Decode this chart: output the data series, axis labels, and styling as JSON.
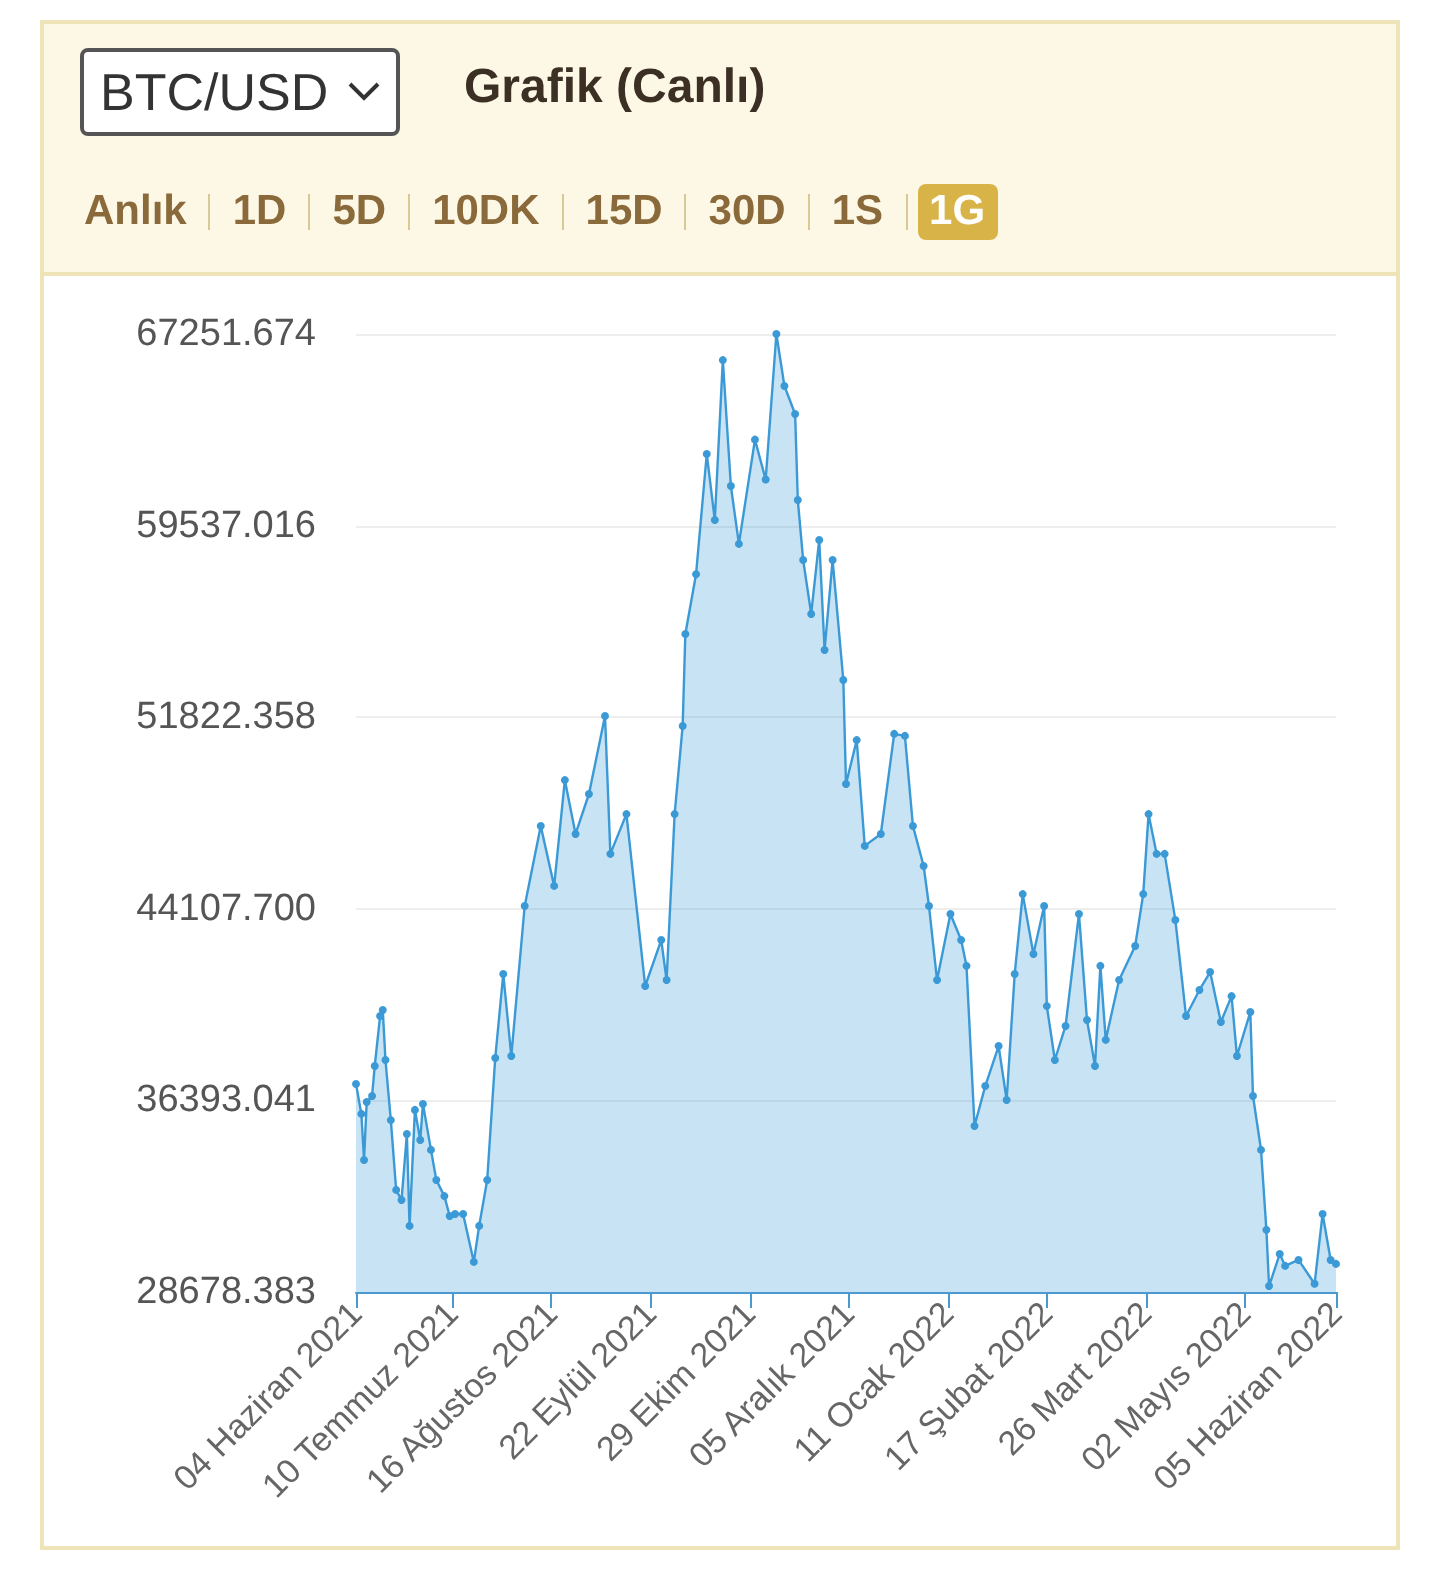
{
  "chart_data": {
    "type": "area",
    "title": "Grafik (Canlı)",
    "annotations": [
      "BTC/USD",
      "Anlık",
      "1D",
      "5D",
      "10DK",
      "15D",
      "30D",
      "1S",
      "1G"
    ],
    "x": [
      "2021-06-04",
      "2021-06-06",
      "2021-06-07",
      "2021-06-08",
      "2021-06-10",
      "2021-06-11",
      "2021-06-13",
      "2021-06-14",
      "2021-06-15",
      "2021-06-17",
      "2021-06-19",
      "2021-06-21",
      "2021-06-23",
      "2021-06-24",
      "2021-06-26",
      "2021-06-28",
      "2021-06-29",
      "2021-07-02",
      "2021-07-04",
      "2021-07-07",
      "2021-07-09",
      "2021-07-11",
      "2021-07-14",
      "2021-07-18",
      "2021-07-20",
      "2021-07-23",
      "2021-07-26",
      "2021-07-29",
      "2021-08-01",
      "2021-08-06",
      "2021-08-12",
      "2021-08-17",
      "2021-08-21",
      "2021-08-25",
      "2021-08-30",
      "2021-09-05",
      "2021-09-07",
      "2021-09-13",
      "2021-09-20",
      "2021-09-26",
      "2021-09-28",
      "2021-10-01",
      "2021-10-04",
      "2021-10-05",
      "2021-10-09",
      "2021-10-13",
      "2021-10-16",
      "2021-10-19",
      "2021-10-22",
      "2021-10-25",
      "2021-10-31",
      "2021-11-04",
      "2021-11-08",
      "2021-11-11",
      "2021-11-15",
      "2021-11-16",
      "2021-11-18",
      "2021-11-21",
      "2021-11-24",
      "2021-11-26",
      "2021-11-29",
      "2021-12-03",
      "2021-12-04",
      "2021-12-08",
      "2021-12-11",
      "2021-12-17",
      "2021-12-22",
      "2021-12-26",
      "2021-12-29",
      "2022-01-02",
      "2022-01-04",
      "2022-01-07",
      "2022-01-12",
      "2022-01-16",
      "2022-01-18",
      "2022-01-21",
      "2022-01-25",
      "2022-01-30",
      "2022-02-02",
      "2022-02-05",
      "2022-02-08",
      "2022-02-12",
      "2022-02-16",
      "2022-02-17",
      "2022-02-20",
      "2022-02-24",
      "2022-03-01",
      "2022-03-04",
      "2022-03-07",
      "2022-03-09",
      "2022-03-11",
      "2022-03-16",
      "2022-03-22",
      "2022-03-25",
      "2022-03-27",
      "2022-03-30",
      "2022-04-02",
      "2022-04-06",
      "2022-04-10",
      "2022-04-15",
      "2022-04-19",
      "2022-04-23",
      "2022-04-27",
      "2022-04-29",
      "2022-05-04",
      "2022-05-05",
      "2022-05-08",
      "2022-05-10",
      "2022-05-11",
      "2022-05-15",
      "2022-05-17",
      "2022-05-22",
      "2022-05-28",
      "2022-05-31",
      "2022-06-03",
      "2022-06-05"
    ],
    "series": [
      {
        "color": "#3b9ad6",
        "values": [
          37050,
          35850,
          33990,
          36330,
          36570,
          37780,
          39790,
          40030,
          38020,
          35600,
          32790,
          32380,
          35040,
          31340,
          36010,
          34800,
          36250,
          34400,
          33190,
          32540,
          31740,
          31820,
          31820,
          29890,
          31340,
          33190,
          38100,
          41480,
          38180,
          44220,
          47440,
          45030,
          49290,
          47120,
          48730,
          51870,
          46320,
          47920,
          41000,
          42850,
          41240,
          47920,
          51470,
          55170,
          57580,
          62420,
          59760,
          66200,
          61130,
          58800,
          63000,
          61390,
          67251,
          65160,
          64030,
          60570,
          58150,
          55980,
          58960,
          54530,
          58150,
          53320,
          49130,
          50900,
          46640,
          47120,
          51150,
          51070,
          47440,
          45830,
          44220,
          41240,
          43900,
          42850,
          41810,
          35360,
          36970,
          38580,
          36410,
          41480,
          44700,
          42290,
          44220,
          40190,
          38020,
          39390,
          43900,
          39630,
          37780,
          41810,
          38830,
          41240,
          42610,
          44700,
          47920,
          46320,
          46320,
          43660,
          39790,
          40840,
          41560,
          39550,
          40590,
          38180,
          39950,
          36570,
          34400,
          31180,
          28920,
          30210,
          29730,
          29970,
          29010,
          31820,
          29970,
          29810
        ]
      }
    ],
    "xlim": [
      "2021-06-04",
      "2022-06-05"
    ],
    "xticks": [
      {
        "value": "2021-06-04",
        "label": "04 Haziran 2021"
      },
      {
        "value": "2021-07-10",
        "label": "10 Temmuz 2021"
      },
      {
        "value": "2021-08-16",
        "label": "16 Ağustos 2021"
      },
      {
        "value": "2021-09-22",
        "label": "22 Eylül 2021"
      },
      {
        "value": "2021-10-29",
        "label": "29 Ekim 2021"
      },
      {
        "value": "2021-12-05",
        "label": "05 Aralık 2021"
      },
      {
        "value": "2022-01-11",
        "label": "11 Ocak 2022"
      },
      {
        "value": "2022-02-17",
        "label": "17 Şubat 2022"
      },
      {
        "value": "2022-03-26",
        "label": "26 Mart 2022"
      },
      {
        "value": "2022-05-02",
        "label": "02 Mayıs 2022"
      },
      {
        "value": "2022-06-05",
        "label": "05 Haziran 2022"
      }
    ],
    "ylim": [
      28678.383,
      67251.674
    ],
    "yticks": [
      28678.383,
      36393.041,
      {
        "value": 44107.7,
        "label": "44107.700"
      },
      51822.358,
      59537.016,
      67251.674
    ],
    "grid": "y",
    "marker": "circle",
    "line_style": "solid"
  }
}
